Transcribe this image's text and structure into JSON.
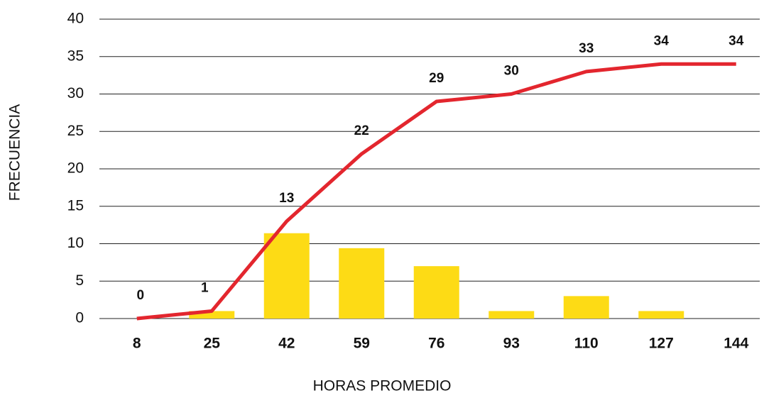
{
  "chart_data": {
    "type": "bar_line",
    "categories": [
      "8",
      "25",
      "42",
      "59",
      "76",
      "93",
      "110",
      "127",
      "144"
    ],
    "series": [
      {
        "type": "bar",
        "color": "#fddb15",
        "values": [
          0,
          1,
          11.4,
          9.4,
          7,
          1,
          3,
          1,
          0
        ]
      },
      {
        "type": "line",
        "color": "#e3262e",
        "values": [
          0,
          1,
          13,
          22,
          29,
          30,
          33,
          34,
          34
        ],
        "value_labels": [
          "0",
          "1",
          "13",
          "22",
          "29",
          "30",
          "33",
          "34",
          "34"
        ]
      }
    ],
    "xlabel": "HORAS PROMEDIO",
    "ylabel": "FRECUENCIA",
    "ylim": [
      0,
      40
    ],
    "yticks": [
      0,
      5,
      10,
      15,
      20,
      25,
      30,
      35,
      40
    ],
    "grid": true
  }
}
